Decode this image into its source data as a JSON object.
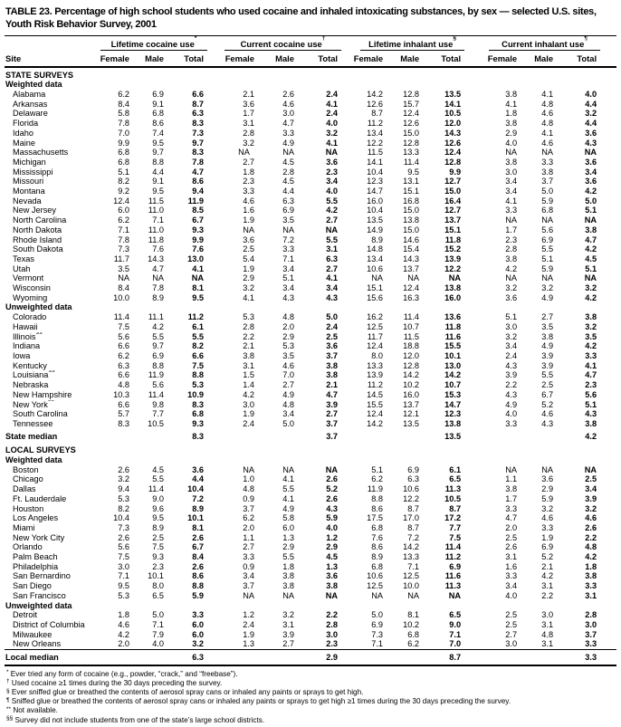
{
  "title": "TABLE 23. Percentage of high school students who used cocaine and inhaled intoxicating substances, by sex — selected U.S. sites, Youth Risk Behavior Survey, 2001",
  "table": {
    "site_header": "Site",
    "sub_headers": [
      "Female",
      "Male",
      "Total"
    ],
    "groups": [
      {
        "label": "Lifetime cocaine use",
        "marker": "*"
      },
      {
        "label": "Current cocaine use",
        "marker": "†"
      },
      {
        "label": "Lifetime inhalant use",
        "marker": "§"
      },
      {
        "label": "Current inhalant use",
        "marker": "¶"
      }
    ],
    "rows": [
      {
        "type": "section",
        "label": "STATE SURVEYS"
      },
      {
        "type": "subheader",
        "label": "Weighted data"
      },
      {
        "type": "data",
        "site": "Alabama",
        "values": [
          "6.2",
          "6.9",
          "6.6",
          "2.1",
          "2.6",
          "2.4",
          "14.2",
          "12.8",
          "13.5",
          "3.8",
          "4.1",
          "4.0"
        ]
      },
      {
        "type": "data",
        "site": "Arkansas",
        "values": [
          "8.4",
          "9.1",
          "8.7",
          "3.6",
          "4.6",
          "4.1",
          "12.6",
          "15.7",
          "14.1",
          "4.1",
          "4.8",
          "4.4"
        ]
      },
      {
        "type": "data",
        "site": "Delaware",
        "values": [
          "5.8",
          "6.8",
          "6.3",
          "1.7",
          "3.0",
          "2.4",
          "8.7",
          "12.4",
          "10.5",
          "1.8",
          "4.6",
          "3.2"
        ]
      },
      {
        "type": "data",
        "site": "Florida",
        "values": [
          "7.8",
          "8.6",
          "8.3",
          "3.1",
          "4.7",
          "4.0",
          "11.2",
          "12.6",
          "12.0",
          "3.8",
          "4.8",
          "4.4"
        ]
      },
      {
        "type": "data",
        "site": "Idaho",
        "values": [
          "7.0",
          "7.4",
          "7.3",
          "2.8",
          "3.3",
          "3.2",
          "13.4",
          "15.0",
          "14.3",
          "2.9",
          "4.1",
          "3.6"
        ]
      },
      {
        "type": "data",
        "site": "Maine",
        "values": [
          "9.9",
          "9.5",
          "9.7",
          "3.2",
          "4.9",
          "4.1",
          "12.2",
          "12.8",
          "12.6",
          "4.0",
          "4.6",
          "4.3"
        ]
      },
      {
        "type": "data",
        "site": "Massachusetts",
        "values": [
          "6.8",
          "9.7",
          "8.3",
          "NA**",
          "NA",
          "NA",
          "11.5",
          "13.3",
          "12.4",
          "NA",
          "NA",
          "NA"
        ]
      },
      {
        "type": "data",
        "site": "Michigan",
        "values": [
          "6.8",
          "8.8",
          "7.8",
          "2.7",
          "4.5",
          "3.6",
          "14.1",
          "11.4",
          "12.8",
          "3.8",
          "3.3",
          "3.6"
        ]
      },
      {
        "type": "data",
        "site": "Mississippi",
        "values": [
          "5.1",
          "4.4",
          "4.7",
          "1.8",
          "2.8",
          "2.3",
          "10.4",
          "9.5",
          "9.9",
          "3.0",
          "3.8",
          "3.4"
        ]
      },
      {
        "type": "data",
        "site": "Missouri",
        "values": [
          "8.2",
          "9.1",
          "8.6",
          "2.3",
          "4.5",
          "3.4",
          "12.3",
          "13.1",
          "12.7",
          "3.4",
          "3.7",
          "3.6"
        ]
      },
      {
        "type": "data",
        "site": "Montana",
        "values": [
          "9.2",
          "9.5",
          "9.4",
          "3.3",
          "4.4",
          "4.0",
          "14.7",
          "15.1",
          "15.0",
          "3.4",
          "5.0",
          "4.2"
        ]
      },
      {
        "type": "data",
        "site": "Nevada",
        "values": [
          "12.4",
          "11.5",
          "11.9",
          "4.6",
          "6.3",
          "5.5",
          "16.0",
          "16.8",
          "16.4",
          "4.1",
          "5.9",
          "5.0"
        ]
      },
      {
        "type": "data",
        "site": "New Jersey",
        "values": [
          "6.0",
          "11.0",
          "8.5",
          "1.6",
          "6.9",
          "4.2",
          "10.4",
          "15.0",
          "12.7",
          "3.3",
          "6.8",
          "5.1"
        ]
      },
      {
        "type": "data",
        "site": "North Carolina",
        "values": [
          "6.2",
          "7.1",
          "6.7",
          "1.9",
          "3.5",
          "2.7",
          "13.5",
          "13.8",
          "13.7",
          "NA",
          "NA",
          "NA"
        ]
      },
      {
        "type": "data",
        "site": "North Dakota",
        "values": [
          "7.1",
          "11.0",
          "9.3",
          "NA",
          "NA",
          "NA",
          "14.9",
          "15.0",
          "15.1",
          "1.7",
          "5.6",
          "3.8"
        ]
      },
      {
        "type": "data",
        "site": "Rhode Island",
        "values": [
          "7.8",
          "11.8",
          "9.9",
          "3.6",
          "7.2",
          "5.5",
          "8.9",
          "14.6",
          "11.8",
          "2.3",
          "6.9",
          "4.7"
        ]
      },
      {
        "type": "data",
        "site": "South Dakota",
        "values": [
          "7.3",
          "7.6",
          "7.6",
          "2.5",
          "3.3",
          "3.1",
          "14.8",
          "15.4",
          "15.2",
          "2.8",
          "5.5",
          "4.2"
        ]
      },
      {
        "type": "data",
        "site": "Texas",
        "values": [
          "11.7",
          "14.3",
          "13.0",
          "5.4",
          "7.1",
          "6.3",
          "13.4",
          "14.3",
          "13.9",
          "3.8",
          "5.1",
          "4.5"
        ]
      },
      {
        "type": "data",
        "site": "Utah",
        "values": [
          "3.5",
          "4.7",
          "4.1",
          "1.9",
          "3.4",
          "2.7",
          "10.6",
          "13.7",
          "12.2",
          "4.2",
          "5.9",
          "5.1"
        ]
      },
      {
        "type": "data",
        "site": "Vermont",
        "values": [
          "NA",
          "NA",
          "NA",
          "2.9",
          "5.1",
          "4.1",
          "NA",
          "NA",
          "NA",
          "NA",
          "NA",
          "NA"
        ]
      },
      {
        "type": "data",
        "site": "Wisconsin",
        "values": [
          "8.4",
          "7.8",
          "8.1",
          "3.2",
          "3.4",
          "3.4",
          "15.1",
          "12.4",
          "13.8",
          "3.2",
          "3.2",
          "3.2"
        ]
      },
      {
        "type": "data",
        "site": "Wyoming",
        "values": [
          "10.0",
          "8.9",
          "9.5",
          "4.1",
          "4.3",
          "4.3",
          "15.6",
          "16.3",
          "16.0",
          "3.6",
          "4.9",
          "4.2"
        ]
      },
      {
        "type": "subheader",
        "label": "Unweighted data"
      },
      {
        "type": "data",
        "site": "Colorado",
        "values": [
          "11.4",
          "11.1",
          "11.2",
          "5.3",
          "4.8",
          "5.0",
          "16.2",
          "11.4",
          "13.6",
          "5.1",
          "2.7",
          "3.8"
        ]
      },
      {
        "type": "data",
        "site": "Hawaii",
        "values": [
          "7.5",
          "4.2",
          "6.1",
          "2.8",
          "2.0",
          "2.4",
          "12.5",
          "10.7",
          "11.8",
          "3.0",
          "3.5",
          "3.2"
        ]
      },
      {
        "type": "data",
        "site": "Illinois",
        "site_marker": "§§",
        "values": [
          "5.6",
          "5.5",
          "5.5",
          "2.2",
          "2.9",
          "2.5",
          "11.7",
          "11.5",
          "11.6",
          "3.2",
          "3.8",
          "3.5"
        ]
      },
      {
        "type": "data",
        "site": "Indiana",
        "values": [
          "6.6",
          "9.7",
          "8.2",
          "2.1",
          "5.3",
          "3.6",
          "12.4",
          "18.8",
          "15.5",
          "3.4",
          "4.9",
          "4.2"
        ]
      },
      {
        "type": "data",
        "site": "Iowa",
        "values": [
          "6.2",
          "6.9",
          "6.6",
          "3.8",
          "3.5",
          "3.7",
          "8.0",
          "12.0",
          "10.1",
          "2.4",
          "3.9",
          "3.3"
        ]
      },
      {
        "type": "data",
        "site": "Kentucky",
        "values": [
          "6.3",
          "8.8",
          "7.5",
          "3.1",
          "4.6",
          "3.8",
          "13.3",
          "12.8",
          "13.0",
          "4.3",
          "3.9",
          "4.1"
        ]
      },
      {
        "type": "data",
        "site": "Louisiana",
        "site_marker": "§§",
        "values": [
          "6.6",
          "11.9",
          "8.8",
          "1.5",
          "7.0",
          "3.8",
          "13.9",
          "14.2",
          "14.2",
          "3.9",
          "5.5",
          "4.7"
        ]
      },
      {
        "type": "data",
        "site": "Nebraska",
        "values": [
          "4.8",
          "5.6",
          "5.3",
          "1.4",
          "2.7",
          "2.1",
          "11.2",
          "10.2",
          "10.7",
          "2.2",
          "2.5",
          "2.3"
        ]
      },
      {
        "type": "data",
        "site": "New Hampshire",
        "values": [
          "10.3",
          "11.4",
          "10.9",
          "4.2",
          "4.9",
          "4.7",
          "14.5",
          "16.0",
          "15.3",
          "4.3",
          "6.7",
          "5.6"
        ]
      },
      {
        "type": "data",
        "site": "New York",
        "site_marker": "§§",
        "values": [
          "6.6",
          "9.8",
          "8.3",
          "3.0",
          "4.8",
          "3.9",
          "15.5",
          "13.7",
          "14.7",
          "4.9",
          "5.2",
          "5.1"
        ]
      },
      {
        "type": "data",
        "site": "South Carolina",
        "values": [
          "5.7",
          "7.7",
          "6.8",
          "1.9",
          "3.4",
          "2.7",
          "12.4",
          "12.1",
          "12.3",
          "4.0",
          "4.6",
          "4.3"
        ]
      },
      {
        "type": "data",
        "site": "Tennessee",
        "values": [
          "8.3",
          "10.5",
          "9.3",
          "2.4",
          "5.0",
          "3.7",
          "14.2",
          "13.5",
          "13.8",
          "3.3",
          "4.3",
          "3.8"
        ]
      },
      {
        "type": "median",
        "label": "State median",
        "totals": [
          "8.3",
          "3.7",
          "13.5",
          "4.2"
        ]
      },
      {
        "type": "section",
        "label": "LOCAL SURVEYS"
      },
      {
        "type": "subheader",
        "label": "Weighted data"
      },
      {
        "type": "data",
        "site": "Boston",
        "values": [
          "2.6",
          "4.5",
          "3.6",
          "NA",
          "NA",
          "NA",
          "5.1",
          "6.9",
          "6.1",
          "NA",
          "NA",
          "NA"
        ]
      },
      {
        "type": "data",
        "site": "Chicago",
        "values": [
          "3.2",
          "5.5",
          "4.4",
          "1.0",
          "4.1",
          "2.6",
          "6.2",
          "6.3",
          "6.5",
          "1.1",
          "3.6",
          "2.5"
        ]
      },
      {
        "type": "data",
        "site": "Dallas",
        "values": [
          "9.4",
          "11.4",
          "10.4",
          "4.8",
          "5.5",
          "5.2",
          "11.9",
          "10.6",
          "11.3",
          "3.8",
          "2.9",
          "3.4"
        ]
      },
      {
        "type": "data",
        "site": "Ft. Lauderdale",
        "values": [
          "5.3",
          "9.0",
          "7.2",
          "0.9",
          "4.1",
          "2.6",
          "8.8",
          "12.2",
          "10.5",
          "1.7",
          "5.9",
          "3.9"
        ]
      },
      {
        "type": "data",
        "site": "Houston",
        "values": [
          "8.2",
          "9.6",
          "8.9",
          "3.7",
          "4.9",
          "4.3",
          "8.6",
          "8.7",
          "8.7",
          "3.3",
          "3.2",
          "3.2"
        ]
      },
      {
        "type": "data",
        "site": "Los Angeles",
        "values": [
          "10.4",
          "9.5",
          "10.1",
          "6.2",
          "5.8",
          "5.9",
          "17.5",
          "17.0",
          "17.2",
          "4.7",
          "4.6",
          "4.6"
        ]
      },
      {
        "type": "data",
        "site": "Miami",
        "values": [
          "7.3",
          "8.9",
          "8.1",
          "2.0",
          "6.0",
          "4.0",
          "6.8",
          "8.7",
          "7.7",
          "2.0",
          "3.3",
          "2.6"
        ]
      },
      {
        "type": "data",
        "site": "New York City",
        "values": [
          "2.6",
          "2.5",
          "2.6",
          "1.1",
          "1.3",
          "1.2",
          "7.6",
          "7.2",
          "7.5",
          "2.5",
          "1.9",
          "2.2"
        ]
      },
      {
        "type": "data",
        "site": "Orlando",
        "values": [
          "5.6",
          "7.5",
          "6.7",
          "2.7",
          "2.9",
          "2.9",
          "8.6",
          "14.2",
          "11.4",
          "2.6",
          "6.9",
          "4.8"
        ]
      },
      {
        "type": "data",
        "site": "Palm Beach",
        "values": [
          "7.5",
          "9.3",
          "8.4",
          "3.3",
          "5.5",
          "4.5",
          "8.9",
          "13.3",
          "11.2",
          "3.1",
          "5.2",
          "4.2"
        ]
      },
      {
        "type": "data",
        "site": "Philadelphia",
        "values": [
          "3.0",
          "2.3",
          "2.6",
          "0.9",
          "1.8",
          "1.3",
          "6.8",
          "7.1",
          "6.9",
          "1.6",
          "2.1",
          "1.8"
        ]
      },
      {
        "type": "data",
        "site": "San Bernardino",
        "values": [
          "7.1",
          "10.1",
          "8.6",
          "3.4",
          "3.8",
          "3.6",
          "10.6",
          "12.5",
          "11.6",
          "3.3",
          "4.2",
          "3.8"
        ]
      },
      {
        "type": "data",
        "site": "San Diego",
        "values": [
          "9.5",
          "8.0",
          "8.8",
          "3.7",
          "3.8",
          "3.8",
          "12.5",
          "10.0",
          "11.3",
          "3.4",
          "3.1",
          "3.3"
        ]
      },
      {
        "type": "data",
        "site": "San Francisco",
        "values": [
          "5.3",
          "6.5",
          "5.9",
          "NA",
          "NA",
          "NA",
          "NA",
          "NA",
          "NA",
          "4.0",
          "2.2",
          "3.1"
        ]
      },
      {
        "type": "subheader",
        "label": "Unweighted data"
      },
      {
        "type": "data",
        "site": "Detroit",
        "values": [
          "1.8",
          "5.0",
          "3.3",
          "1.2",
          "3.2",
          "2.2",
          "5.0",
          "8.1",
          "6.5",
          "2.5",
          "3.0",
          "2.8"
        ]
      },
      {
        "type": "data",
        "site": "District of Columbia",
        "values": [
          "4.6",
          "7.1",
          "6.0",
          "2.4",
          "3.1",
          "2.8",
          "6.9",
          "10.2",
          "9.0",
          "2.5",
          "3.1",
          "3.0"
        ]
      },
      {
        "type": "data",
        "site": "Milwaukee",
        "values": [
          "4.2",
          "7.9",
          "6.0",
          "1.9",
          "3.9",
          "3.0",
          "7.3",
          "6.8",
          "7.1",
          "2.7",
          "4.8",
          "3.7"
        ]
      },
      {
        "type": "data",
        "site": "New Orleans",
        "values": [
          "2.0",
          "4.0",
          "3.2",
          "1.3",
          "2.7",
          "2.3",
          "7.1",
          "6.2",
          "7.0",
          "3.0",
          "3.1",
          "3.3"
        ]
      },
      {
        "type": "median",
        "label": "Local median",
        "totals": [
          "6.3",
          "2.9",
          "8.7",
          "3.3"
        ]
      }
    ]
  },
  "footnotes": [
    {
      "marker": "*",
      "text": "Ever tried any form of cocaine (e.g., powder, “crack,” and “freebase”)."
    },
    {
      "marker": "†",
      "text": "Used cocaine ≥1 times during the 30 days preceding the survey."
    },
    {
      "marker": "§",
      "text": "Ever sniffed glue or breathed the contents of aerosol spray cans or inhaled any paints or sprays to get high."
    },
    {
      "marker": "¶",
      "text": "Sniffed glue or breathed the contents of aerosol spray cans or inhaled any paints or sprays to get high ≥1 times during the 30 days preceding the survey."
    },
    {
      "marker": "**",
      "text": "Not available."
    },
    {
      "marker": "§§",
      "text": "Survey did not include students from one of the state’s large school districts."
    }
  ]
}
